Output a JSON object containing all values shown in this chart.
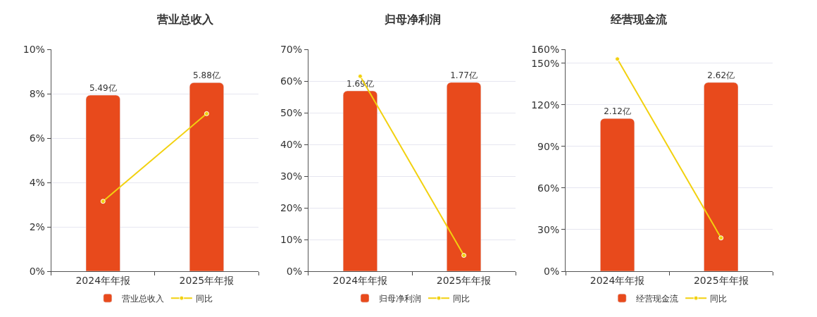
{
  "chart_data": [
    {
      "type": "bar",
      "title": "营业总收入",
      "categories": [
        "2024年年报",
        "2025年年报"
      ],
      "series": [
        {
          "name": "营业总收入",
          "color": "#e84a1c",
          "values": [
            5.49,
            5.88
          ],
          "value_labels": [
            "5.49亿",
            "5.88亿"
          ],
          "axis": "y2"
        },
        {
          "name": "同比",
          "type": "line",
          "color": "#f2d10f",
          "values": [
            3.15,
            7.1
          ]
        }
      ],
      "ylim": [
        0,
        10
      ],
      "yticks": [
        {
          "value": 0,
          "label": "0%"
        },
        {
          "value": 2,
          "label": "2%"
        },
        {
          "value": 4,
          "label": "4%"
        },
        {
          "value": 6,
          "label": "6%"
        },
        {
          "value": 8,
          "label": "8%"
        },
        {
          "value": 10,
          "label": "10%"
        }
      ],
      "y2lim": [
        0,
        6.92
      ],
      "tick_labels": "xy",
      "grid": "y",
      "legend": "bottom",
      "marker": "circle"
    },
    {
      "type": "bar",
      "title": "归母净利润",
      "categories": [
        "2024年年报",
        "2025年年报"
      ],
      "series": [
        {
          "name": "归母净利润",
          "color": "#e84a1c",
          "values": [
            1.69,
            1.77
          ],
          "value_labels": [
            "1.69亿",
            "1.77亿"
          ],
          "axis": "y2"
        },
        {
          "name": "同比",
          "type": "line",
          "color": "#f2d10f",
          "values": [
            61.5,
            5
          ]
        }
      ],
      "ylim": [
        0,
        70
      ],
      "yticks": [
        {
          "value": 0,
          "label": "0%"
        },
        {
          "value": 10,
          "label": "10%"
        },
        {
          "value": 20,
          "label": "20%"
        },
        {
          "value": 30,
          "label": "30%"
        },
        {
          "value": 40,
          "label": "40%"
        },
        {
          "value": 50,
          "label": "50%"
        },
        {
          "value": 60,
          "label": "60%"
        },
        {
          "value": 70,
          "label": "70%"
        }
      ],
      "y2lim": [
        0,
        2.08
      ],
      "tick_labels": "xy",
      "grid": "y",
      "legend": "bottom",
      "marker": "circle"
    },
    {
      "type": "bar",
      "title": "经营现金流",
      "categories": [
        "2024年年报",
        "2025年年报"
      ],
      "series": [
        {
          "name": "经营现金流",
          "color": "#e84a1c",
          "values": [
            2.12,
            2.62
          ],
          "value_labels": [
            "2.12亿",
            "2.62亿"
          ],
          "axis": "y2"
        },
        {
          "name": "同比",
          "type": "line",
          "color": "#f2d10f",
          "values": [
            153,
            24
          ]
        }
      ],
      "ylim": [
        0,
        160
      ],
      "yticks": [
        {
          "value": 0,
          "label": "0%"
        },
        {
          "value": 30,
          "label": "30%"
        },
        {
          "value": 60,
          "label": "60%"
        },
        {
          "value": 90,
          "label": "90%"
        },
        {
          "value": 120,
          "label": "120%"
        },
        {
          "value": 150,
          "label": "150%"
        },
        {
          "value": 160,
          "label": "160%"
        }
      ],
      "y2lim": [
        0,
        3.08
      ],
      "tick_labels": "xy",
      "grid": "y",
      "legend": "bottom",
      "marker": "circle"
    }
  ]
}
